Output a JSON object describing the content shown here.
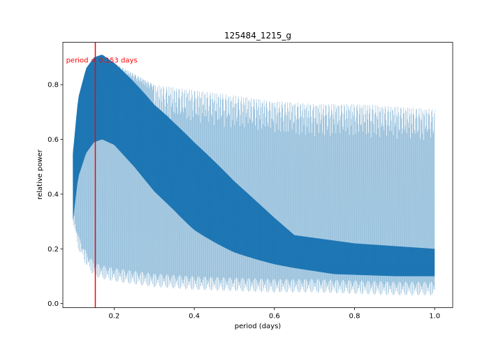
{
  "chart_data": {
    "type": "line",
    "title": "125484_1215_g",
    "xlabel": "period (days)",
    "ylabel": "relative power",
    "xlim": [
      0.072,
      1.045
    ],
    "ylim": [
      -0.015,
      0.955
    ],
    "xticks": [
      0.2,
      0.4,
      0.6,
      0.8,
      1.0
    ],
    "xtick_labels": [
      "0.2",
      "0.4",
      "0.6",
      "0.8",
      "1.0"
    ],
    "yticks": [
      0.0,
      0.2,
      0.4,
      0.6,
      0.8
    ],
    "ytick_labels": [
      "0.0",
      "0.2",
      "0.4",
      "0.6",
      "0.8"
    ],
    "grid": false,
    "series": [
      {
        "color": "#1f77b4",
        "x_range": [
          0.097,
          1.0
        ],
        "upper_envelope": {
          "x": [
            0.097,
            0.11,
            0.13,
            0.15,
            0.17,
            0.2,
            0.25,
            0.3,
            0.4,
            0.5,
            0.6,
            0.7,
            0.8,
            0.9,
            1.0
          ],
          "y": [
            0.55,
            0.75,
            0.86,
            0.9,
            0.91,
            0.88,
            0.84,
            0.8,
            0.78,
            0.76,
            0.74,
            0.73,
            0.73,
            0.72,
            0.71
          ]
        },
        "lower_envelope": {
          "x": [
            0.097,
            0.11,
            0.13,
            0.15,
            0.17,
            0.2,
            0.25,
            0.3,
            0.4,
            0.5,
            0.6,
            0.7,
            0.8,
            0.9,
            1.0
          ],
          "y": [
            0.3,
            0.2,
            0.14,
            0.1,
            0.09,
            0.08,
            0.07,
            0.06,
            0.05,
            0.045,
            0.04,
            0.04,
            0.035,
            0.03,
            0.03
          ]
        },
        "dense_band_lower": {
          "x": [
            0.097,
            0.11,
            0.13,
            0.15,
            0.17,
            0.2,
            0.25,
            0.3,
            0.35,
            0.4,
            0.5,
            0.6,
            0.7,
            0.8,
            0.9,
            1.0
          ],
          "y": [
            0.3,
            0.46,
            0.55,
            0.59,
            0.6,
            0.58,
            0.5,
            0.41,
            0.34,
            0.29,
            0.23,
            0.2,
            0.18,
            0.16,
            0.15,
            0.14
          ]
        }
      }
    ],
    "annotations": [
      {
        "type": "vline",
        "x": 0.153,
        "color": "#ff0000"
      },
      {
        "type": "text",
        "text": "period = 0.153 days",
        "x": 0.08,
        "y": 0.89,
        "color": "#ff0000"
      }
    ]
  }
}
